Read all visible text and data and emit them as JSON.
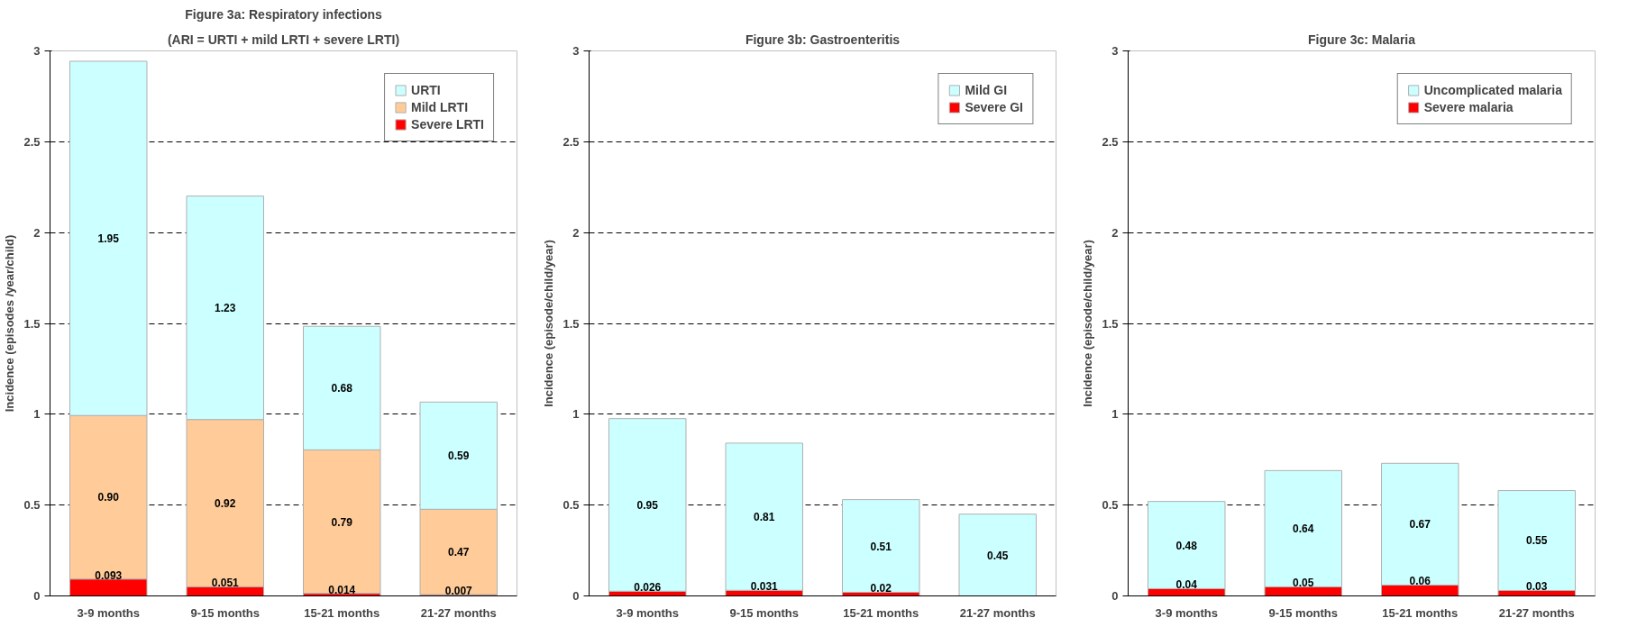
{
  "chart_data": [
    {
      "type": "bar",
      "stacked": true,
      "title": "Figure 3a: Respiratory infections",
      "subtitle": "(ARI = URTI + mild LRTI + severe LRTI)",
      "ylabel": "Incidence (episodes /year/child)",
      "categories": [
        "3-9 months",
        "9-15 months",
        "15-21 months",
        "21-27 months"
      ],
      "ylim": [
        0,
        3
      ],
      "yticks": [
        0,
        0.5,
        1,
        1.5,
        2,
        2.5,
        3
      ],
      "grid": "y",
      "legend": "top right",
      "series": [
        {
          "name": "Severe LRTI",
          "color": "#ff0000",
          "values": [
            0.093,
            0.051,
            0.014,
            0.007
          ],
          "value_labels": [
            "0.093",
            "0.051",
            "0.014",
            "0.007"
          ]
        },
        {
          "name": "Mild LRTI",
          "color": "#ffcc99",
          "values": [
            0.9,
            0.92,
            0.79,
            0.47
          ],
          "value_labels": [
            "0.90",
            "0.92",
            "0.79",
            "0.47"
          ]
        },
        {
          "name": "URTI",
          "color": "#ccffff",
          "values": [
            1.95,
            1.23,
            0.68,
            0.59
          ],
          "value_labels": [
            "1.95",
            "1.23",
            "0.68",
            "0.59"
          ]
        }
      ]
    },
    {
      "type": "bar",
      "stacked": true,
      "title": "Figure 3b: Gastroenteritis",
      "ylabel": "Incidence (episode/child/year)",
      "categories": [
        "3-9 months",
        "9-15 months",
        "15-21 months",
        "21-27 months"
      ],
      "ylim": [
        0,
        3
      ],
      "yticks": [
        0,
        0.5,
        1,
        1.5,
        2,
        2.5,
        3
      ],
      "grid": "y",
      "legend": "top right",
      "series": [
        {
          "name": "Severe GI",
          "color": "#ff0000",
          "values": [
            0.026,
            0.031,
            0.02,
            null
          ],
          "value_labels": [
            "0.026",
            "0.031",
            "0.02",
            null
          ]
        },
        {
          "name": "Mild GI",
          "color": "#ccffff",
          "values": [
            0.95,
            0.81,
            0.51,
            0.45
          ],
          "value_labels": [
            "0.95",
            "0.81",
            "0.51",
            "0.45"
          ]
        }
      ]
    },
    {
      "type": "bar",
      "stacked": true,
      "title": "Figure 3c: Malaria",
      "ylabel": "Incidence (episode/child/year)",
      "categories": [
        "3-9 months",
        "9-15 months",
        "15-21 months",
        "21-27 months"
      ],
      "ylim": [
        0,
        3
      ],
      "yticks": [
        0,
        0.5,
        1,
        1.5,
        2,
        2.5,
        3
      ],
      "grid": "y",
      "legend": "top right",
      "series": [
        {
          "name": "Severe malaria",
          "color": "#ff0000",
          "values": [
            0.04,
            0.05,
            0.06,
            0.03
          ],
          "value_labels": [
            "0.04",
            "0.05",
            "0.06",
            "0.03"
          ]
        },
        {
          "name": "Uncomplicated malaria",
          "color": "#ccffff",
          "values": [
            0.48,
            0.64,
            0.67,
            0.55
          ],
          "value_labels": [
            "0.48",
            "0.64",
            "0.67",
            "0.55"
          ]
        }
      ]
    }
  ]
}
